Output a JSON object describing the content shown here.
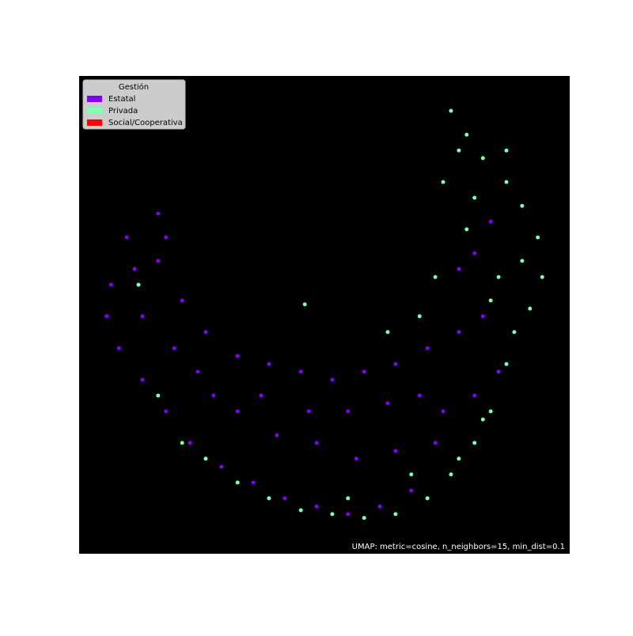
{
  "chart_data": {
    "type": "scatter",
    "legend_title": "Gestión",
    "legend_position": "upper left",
    "annotation": "UMAP: metric=cosine, n_neighbors=15, min_dist=0.1",
    "background": "#000000",
    "xlim": [
      0,
      10
    ],
    "ylim": [
      0,
      10
    ],
    "series": [
      {
        "name": "Estatal",
        "color": "#8000ff",
        "x": [
          1.61,
          0.97,
          0.65,
          0.56,
          0.81,
          1.29,
          1.77,
          2.26,
          2.9,
          3.55,
          4.19,
          4.84,
          5.48,
          6.13,
          6.77,
          1.61,
          2.1,
          2.58,
          3.23,
          3.87,
          4.52,
          5.16,
          5.81,
          6.45,
          7.1,
          7.74,
          8.23,
          8.55,
          8.06,
          7.42,
          2.42,
          3.23,
          4.03,
          4.84,
          5.65,
          6.45,
          7.26,
          1.29,
          1.94,
          2.74,
          3.71,
          4.68,
          5.48,
          6.29,
          6.94,
          8.06,
          8.39,
          7.74,
          1.77,
          1.13
        ],
        "values": [
          7.12,
          6.62,
          5.63,
          4.97,
          4.3,
          3.64,
          2.98,
          2.32,
          1.82,
          1.49,
          1.16,
          0.99,
          0.83,
          0.99,
          1.32,
          6.13,
          5.3,
          4.64,
          4.14,
          3.97,
          3.81,
          3.64,
          3.81,
          3.97,
          4.3,
          4.64,
          4.97,
          3.81,
          3.31,
          2.98,
          3.81,
          2.98,
          2.48,
          2.32,
          1.99,
          2.15,
          2.32,
          4.97,
          4.3,
          3.31,
          3.31,
          2.98,
          2.98,
          3.15,
          3.31,
          6.29,
          6.95,
          5.96,
          6.62,
          5.96
        ]
      },
      {
        "name": "Privada",
        "color": "#80ffb4",
        "x": [
          7.58,
          7.9,
          8.23,
          8.71,
          9.03,
          9.35,
          9.44,
          9.19,
          8.87,
          8.71,
          8.39,
          8.06,
          7.58,
          7.1,
          6.45,
          5.81,
          5.16,
          4.52,
          3.87,
          3.23,
          2.58,
          8.55,
          8.06,
          7.42,
          7.74,
          8.39,
          7.26,
          6.94,
          6.29,
          8.71,
          7.9,
          9.03,
          2.1,
          1.61,
          1.21,
          4.6,
          8.23,
          7.74,
          6.77,
          5.48
        ],
        "values": [
          9.27,
          8.77,
          8.28,
          7.78,
          7.28,
          6.62,
          5.79,
          5.13,
          4.64,
          3.97,
          2.98,
          2.32,
          1.66,
          1.16,
          0.83,
          0.75,
          0.83,
          0.91,
          1.16,
          1.49,
          1.99,
          5.79,
          7.45,
          7.78,
          8.44,
          5.3,
          5.79,
          4.97,
          4.64,
          8.44,
          6.79,
          6.13,
          2.32,
          3.31,
          5.63,
          5.22,
          2.81,
          1.99,
          1.66,
          1.16
        ]
      },
      {
        "name": "Social/Cooperativa",
        "color": "#ff0000",
        "x": [],
        "values": []
      }
    ]
  }
}
